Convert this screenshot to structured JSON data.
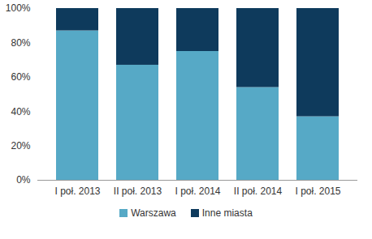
{
  "chart_data": {
    "type": "bar",
    "stacked": true,
    "categories": [
      "I poł. 2013",
      "II poł. 2013",
      "I poł. 2014",
      "II poł. 2014",
      "I poł. 2015"
    ],
    "series": [
      {
        "name": "Warszawa",
        "color": "#56a9c6",
        "values": [
          87,
          67,
          75,
          54,
          37
        ]
      },
      {
        "name": "Inne miasta",
        "color": "#0e3a5c",
        "values": [
          13,
          33,
          25,
          46,
          63
        ]
      }
    ],
    "ylim": [
      0,
      100
    ],
    "yticks": [
      {
        "value": 0,
        "label": "0%"
      },
      {
        "value": 20,
        "label": "20%"
      },
      {
        "value": 40,
        "label": "40%"
      },
      {
        "value": 60,
        "label": "60%"
      },
      {
        "value": 80,
        "label": "80%"
      },
      {
        "value": 100,
        "label": "100%"
      }
    ],
    "grid": false,
    "legend": "bottom"
  }
}
